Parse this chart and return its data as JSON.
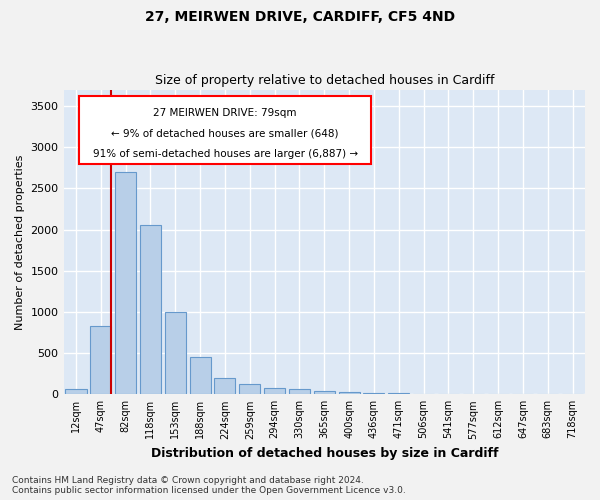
{
  "title1": "27, MEIRWEN DRIVE, CARDIFF, CF5 4ND",
  "title2": "Size of property relative to detached houses in Cardiff",
  "xlabel": "Distribution of detached houses by size in Cardiff",
  "ylabel": "Number of detached properties",
  "categories": [
    "12sqm",
    "47sqm",
    "82sqm",
    "118sqm",
    "153sqm",
    "188sqm",
    "224sqm",
    "259sqm",
    "294sqm",
    "330sqm",
    "365sqm",
    "400sqm",
    "436sqm",
    "471sqm",
    "506sqm",
    "541sqm",
    "577sqm",
    "612sqm",
    "647sqm",
    "683sqm",
    "718sqm"
  ],
  "values": [
    70,
    830,
    2700,
    2050,
    1000,
    450,
    200,
    130,
    75,
    65,
    45,
    30,
    20,
    10,
    5,
    3,
    2,
    1,
    1,
    1,
    1
  ],
  "bar_color": "#b8cfe8",
  "bar_edge_color": "#6699cc",
  "bg_color": "#dde8f5",
  "grid_color": "#ffffff",
  "property_line_color": "#cc0000",
  "property_bin_index": 1,
  "annotation_title": "27 MEIRWEN DRIVE: 79sqm",
  "annotation_line1": "← 9% of detached houses are smaller (648)",
  "annotation_line2": "91% of semi-detached houses are larger (6,887) →",
  "ylim": [
    0,
    3700
  ],
  "yticks": [
    0,
    500,
    1000,
    1500,
    2000,
    2500,
    3000,
    3500
  ],
  "footnote1": "Contains HM Land Registry data © Crown copyright and database right 2024.",
  "footnote2": "Contains public sector information licensed under the Open Government Licence v3.0."
}
